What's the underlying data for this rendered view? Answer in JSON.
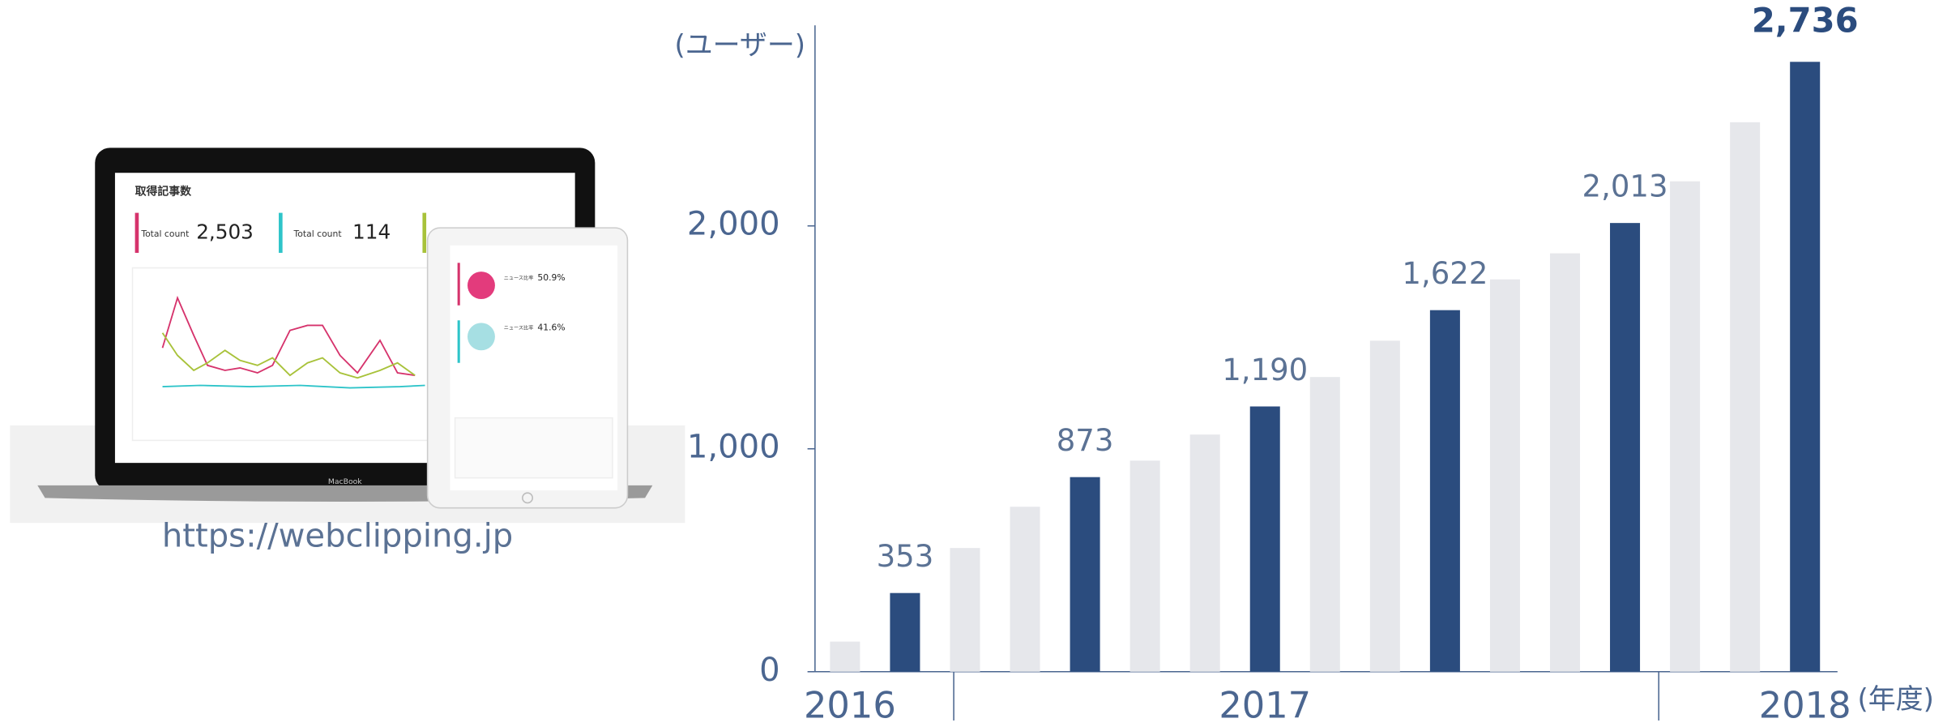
{
  "chart_data": {
    "type": "bar",
    "y_axis_label": "(ユーザー)",
    "x_axis_label": "(年度)",
    "categories": [
      "2016",
      null,
      null,
      null,
      null,
      null,
      null,
      "2017",
      null,
      null,
      null,
      null,
      null,
      null,
      null,
      null,
      "2018"
    ],
    "values": [
      135,
      353,
      555,
      740,
      873,
      947,
      1064,
      1190,
      1322,
      1485,
      1622,
      1760,
      1877,
      2013,
      2200,
      2465,
      2736
    ],
    "value_labels": [
      null,
      "353",
      null,
      null,
      "873",
      null,
      null,
      "1,190",
      null,
      null,
      "1,622",
      null,
      null,
      "2,013",
      null,
      null,
      "2,736"
    ],
    "colors": [
      "#e6e7eb",
      "#2b4c7e",
      "#e6e7eb",
      "#e6e7eb",
      "#2b4c7e",
      "#e6e7eb",
      "#e6e7eb",
      "#2b4c7e",
      "#e6e7eb",
      "#e6e7eb",
      "#2b4c7e",
      "#e6e7eb",
      "#e6e7eb",
      "#2b4c7e",
      "#e6e7eb",
      "#e6e7eb",
      "#2b4c7e"
    ],
    "ylim": [
      0,
      2900
    ],
    "yticks": [
      0,
      {
        "value": 1000,
        "label": "1,000"
      },
      {
        "value": 2000,
        "label": "2,000"
      }
    ]
  },
  "device_mockup": {
    "screen_title": "取得記事数",
    "count_label_1": "Total count",
    "count_value_1": "2,503",
    "count_label_2": "Total count",
    "count_value_2": "114",
    "tablet_label_1": "ニュース比率",
    "tablet_value_1": "50.9%",
    "tablet_label_2": "ニュース比率",
    "tablet_value_2": "41.6%",
    "laptop_brand": "MacBook"
  },
  "url": "https://webclipping.jp"
}
